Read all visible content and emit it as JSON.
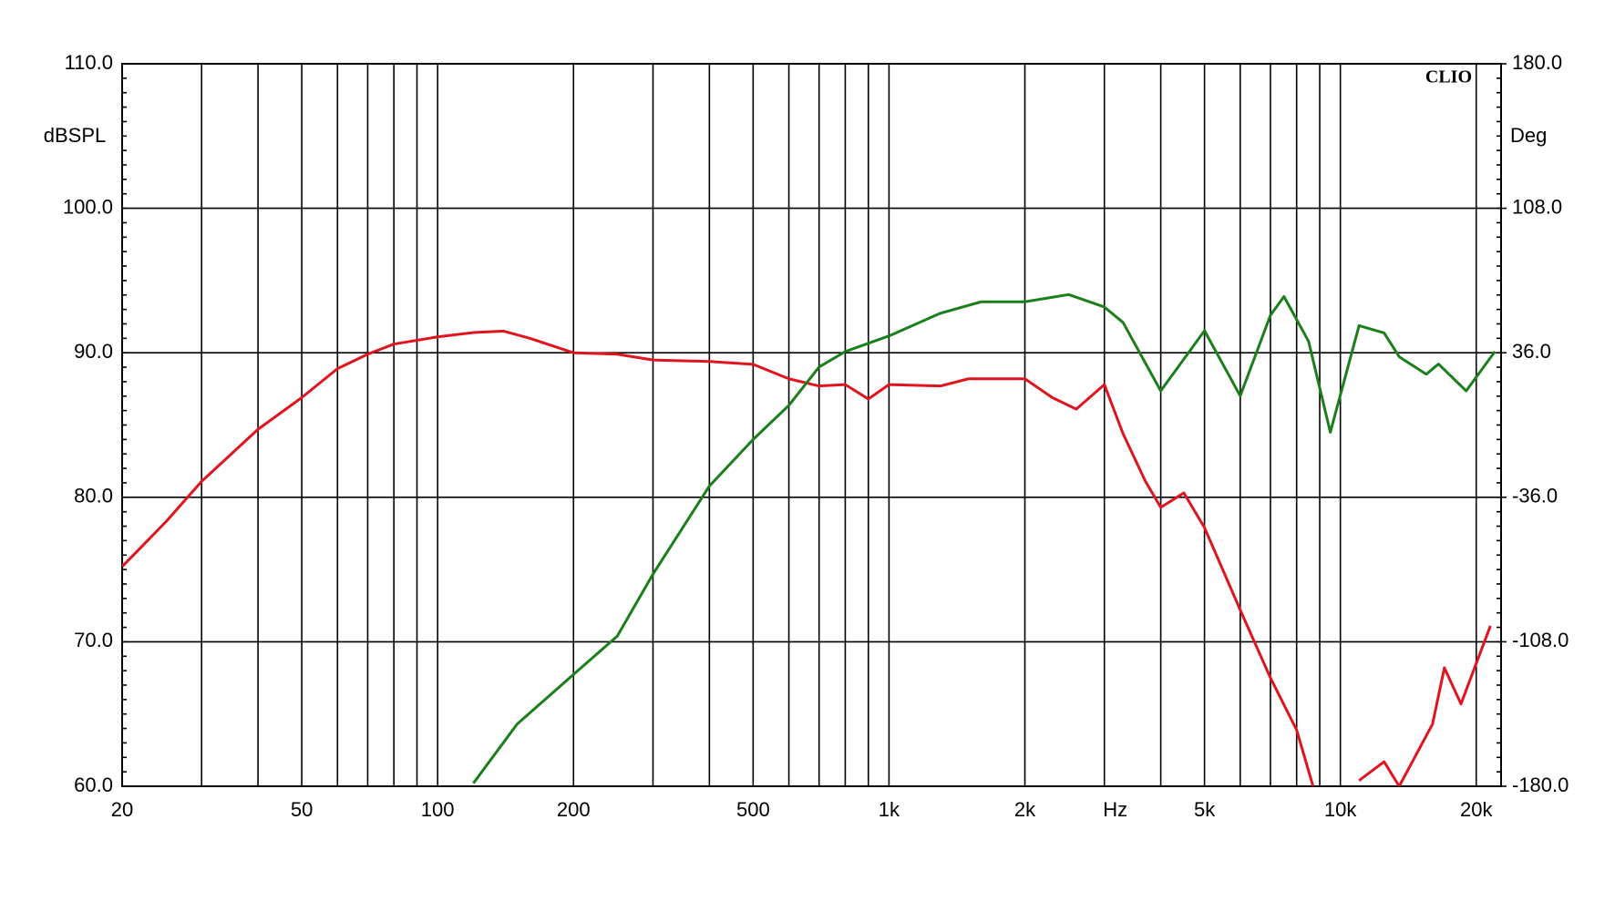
{
  "chart_data": {
    "type": "line",
    "xscale": "log",
    "xlim": [
      20,
      22700
    ],
    "xticks": [
      {
        "value": 20,
        "label": "20"
      },
      {
        "value": 50,
        "label": "50"
      },
      {
        "value": 100,
        "label": "100"
      },
      {
        "value": 200,
        "label": "200"
      },
      {
        "value": 500,
        "label": "500"
      },
      {
        "value": 1000,
        "label": "1k"
      },
      {
        "value": 2000,
        "label": "2k"
      },
      {
        "value": 5000,
        "label": "5k"
      },
      {
        "value": 10000,
        "label": "10k"
      },
      {
        "value": 20000,
        "label": "20k"
      }
    ],
    "xminor": [
      30,
      40,
      60,
      70,
      80,
      90,
      300,
      400,
      600,
      700,
      800,
      900,
      3000,
      4000,
      6000,
      7000,
      8000,
      9000
    ],
    "xlabel": "Hz",
    "ylabel": "dBSPL",
    "y2label": "Deg",
    "brand": "CLIO",
    "ylim": [
      60,
      110
    ],
    "yticks": [
      {
        "value": 60,
        "label": "60.0"
      },
      {
        "value": 70,
        "label": "70.0"
      },
      {
        "value": 80,
        "label": "80.0"
      },
      {
        "value": 90,
        "label": "90.0"
      },
      {
        "value": 100,
        "label": "100.0"
      },
      {
        "value": 110,
        "label": "110.0"
      }
    ],
    "y2lim": [
      -180,
      180
    ],
    "y2ticks": [
      {
        "value": -180,
        "label": "-180.0"
      },
      {
        "value": -108,
        "label": "-108.0"
      },
      {
        "value": -36,
        "label": "-36.0"
      },
      {
        "value": 36,
        "label": "36.0"
      },
      {
        "value": 108,
        "label": "108.0"
      },
      {
        "value": 180,
        "label": "180.0"
      }
    ],
    "grid": true,
    "series": [
      {
        "color": "#e0141e",
        "x": [
          20,
          25,
          30,
          40,
          50,
          60,
          70,
          80,
          100,
          120,
          140,
          160,
          200,
          250,
          300,
          400,
          500,
          600,
          700,
          800,
          900,
          1000,
          1300,
          1500,
          2000,
          2300,
          2600,
          3000,
          3300,
          3700,
          4000,
          4500,
          5000,
          6000,
          7000,
          8000,
          8700,
          10000,
          11000,
          12500,
          13500,
          16000,
          17000,
          18500,
          21500
        ],
        "values": [
          75.2,
          78.3,
          81.1,
          84.7,
          86.9,
          88.9,
          89.9,
          90.6,
          91.1,
          91.4,
          91.5,
          91.0,
          90.0,
          89.9,
          89.5,
          89.4,
          89.2,
          88.2,
          87.7,
          87.8,
          86.8,
          87.8,
          87.7,
          88.2,
          88.2,
          86.9,
          86.1,
          87.8,
          84.4,
          81.1,
          79.3,
          80.3,
          77.9,
          72.2,
          67.5,
          63.9,
          60,
          null,
          60.4,
          61.7,
          60,
          64.3,
          68.2,
          65.7,
          71.1
        ]
      },
      {
        "color": "#1a7f1a",
        "axis": "y2",
        "x": [
          120,
          150,
          200,
          250,
          300,
          400,
          500,
          600,
          700,
          800,
          1000,
          1300,
          1600,
          2000,
          2500,
          3000,
          3300,
          4000,
          5000,
          6000,
          7000,
          7500,
          8500,
          9500,
          11000,
          12500,
          13500,
          15500,
          16500,
          19000,
          22000
        ],
        "values": [
          -178.5,
          -149,
          -124.3,
          -105.2,
          -74.3,
          -30.4,
          -7.2,
          9.8,
          28.9,
          36.6,
          44.4,
          55.7,
          61.4,
          61.4,
          65,
          58.8,
          51.1,
          17,
          47,
          14.5,
          54.7,
          64,
          41.8,
          -3.6,
          49.5,
          45.9,
          34,
          25.3,
          30.4,
          17,
          36.6
        ]
      }
    ]
  }
}
